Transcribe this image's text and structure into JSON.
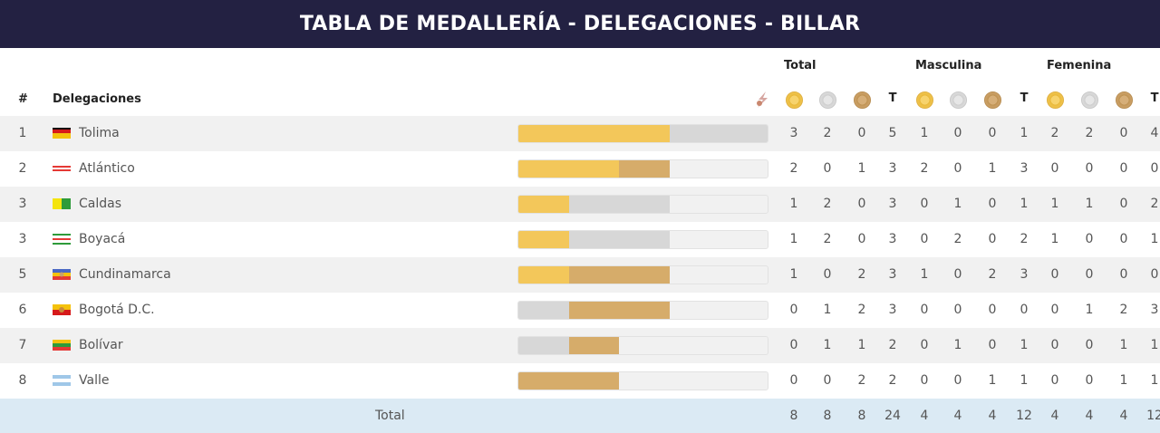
{
  "title": "TABLA DE MEDALLERÍA - DELEGACIONES - BILLAR",
  "groups": {
    "total": "Total",
    "masculina": "Masculina",
    "femenina": "Femenina"
  },
  "headers": {
    "rank": "#",
    "delegation": "Delegaciones",
    "t": "T"
  },
  "icons": {
    "sport": "billiards-sport-icon",
    "gold": "gold-medal-icon",
    "silver": "silver-medal-icon",
    "bronze": "bronze-medal-icon"
  },
  "colors": {
    "title_bg": "#232142",
    "gold": "#f3c75a",
    "silver": "#d7d7d7",
    "bronze": "#d6ac6a",
    "total_bg": "#dbeaf4"
  },
  "rows": [
    {
      "rank": "1",
      "name": "Tolima",
      "flag": "tolima",
      "total": [
        "3",
        "2",
        "0",
        "5"
      ],
      "masc": [
        "1",
        "0",
        "0",
        "1"
      ],
      "fem": [
        "2",
        "2",
        "0",
        "4"
      ]
    },
    {
      "rank": "2",
      "name": "Atlántico",
      "flag": "atlantico",
      "total": [
        "2",
        "0",
        "1",
        "3"
      ],
      "masc": [
        "2",
        "0",
        "1",
        "3"
      ],
      "fem": [
        "0",
        "0",
        "0",
        "0"
      ]
    },
    {
      "rank": "3",
      "name": "Caldas",
      "flag": "caldas",
      "total": [
        "1",
        "2",
        "0",
        "3"
      ],
      "masc": [
        "0",
        "1",
        "0",
        "1"
      ],
      "fem": [
        "1",
        "1",
        "0",
        "2"
      ]
    },
    {
      "rank": "3",
      "name": "Boyacá",
      "flag": "boyaca",
      "total": [
        "1",
        "2",
        "0",
        "3"
      ],
      "masc": [
        "0",
        "2",
        "0",
        "2"
      ],
      "fem": [
        "1",
        "0",
        "0",
        "1"
      ]
    },
    {
      "rank": "5",
      "name": "Cundinamarca",
      "flag": "cundinamarca",
      "total": [
        "1",
        "0",
        "2",
        "3"
      ],
      "masc": [
        "1",
        "0",
        "2",
        "3"
      ],
      "fem": [
        "0",
        "0",
        "0",
        "0"
      ]
    },
    {
      "rank": "6",
      "name": "Bogotá D.C.",
      "flag": "bogota",
      "total": [
        "0",
        "1",
        "2",
        "3"
      ],
      "masc": [
        "0",
        "0",
        "0",
        "0"
      ],
      "fem": [
        "0",
        "1",
        "2",
        "3"
      ]
    },
    {
      "rank": "7",
      "name": "Bolívar",
      "flag": "bolivar",
      "total": [
        "0",
        "1",
        "1",
        "2"
      ],
      "masc": [
        "0",
        "1",
        "0",
        "1"
      ],
      "fem": [
        "0",
        "0",
        "1",
        "1"
      ]
    },
    {
      "rank": "8",
      "name": "Valle",
      "flag": "valle",
      "total": [
        "0",
        "0",
        "2",
        "2"
      ],
      "masc": [
        "0",
        "0",
        "1",
        "1"
      ],
      "fem": [
        "0",
        "0",
        "1",
        "1"
      ]
    }
  ],
  "totals": {
    "label": "Total",
    "total": [
      "8",
      "8",
      "8",
      "24"
    ],
    "masc": [
      "4",
      "4",
      "4",
      "12"
    ],
    "fem": [
      "4",
      "4",
      "4",
      "12"
    ]
  }
}
